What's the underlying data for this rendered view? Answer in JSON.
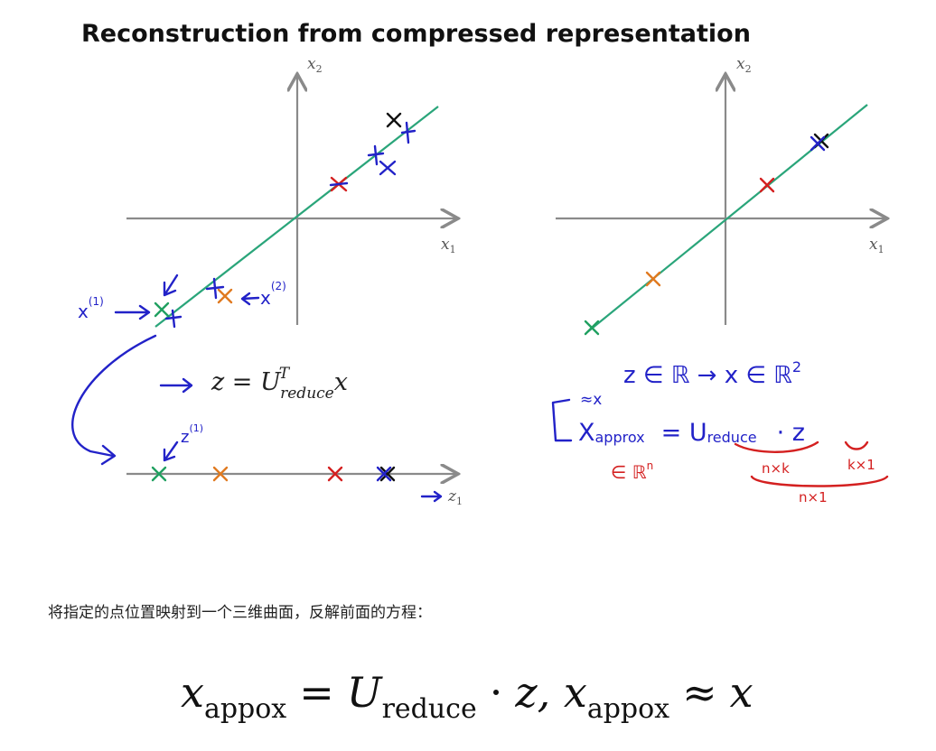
{
  "figure": {
    "title": "Reconstruction from compressed representation",
    "left_plot": {
      "x_axis_label": "x",
      "x_axis_sub": "1",
      "y_axis_label": "x",
      "y_axis_sub": "2"
    },
    "right_plot": {
      "x_axis_label": "x",
      "x_axis_sub": "1",
      "y_axis_label": "x",
      "y_axis_sub": "2"
    },
    "line_plot": {
      "axis_label": "z",
      "axis_sub": "1"
    },
    "colors": {
      "axis": "#8a8a8a",
      "projection_line": "#2aa57a",
      "ink_blue": "#2222c8",
      "ink_red": "#d42020",
      "ink_orange": "#e07a20",
      "ink_green": "#20a060",
      "ink_black": "#111111"
    },
    "annotations": {
      "x1_label": "x",
      "x1_sup": "(1)",
      "x2_label": "x",
      "x2_sup": "(2)",
      "z1_label": "z",
      "z1_sup": "(1)",
      "eq_lhs": "z = U",
      "eq_sup": "T",
      "eq_sub": "reduce",
      "eq_rhs": "x",
      "top_line": "z ∈ ℝ  →  x ∈ ℝ",
      "top_line_sup": "2",
      "approx_symbol": "≈x",
      "approx_eq": "X",
      "approx_eq_sub": "approx",
      "approx_rhs": "= U",
      "approx_rhs_sub": "reduce",
      "approx_dot_z": "· z",
      "in_rn": "∈ ℝ",
      "in_rn_sup": "n",
      "dim_nk": "n×k",
      "dim_k1": "k×1",
      "dim_n1": "n×1"
    }
  },
  "caption": "将指定的点位置映射到一个三维曲面，反解前面的方程：",
  "formula": {
    "lhs_var": "x",
    "lhs_sub": "appox",
    "eq": "=",
    "u_var": "U",
    "u_sub": "reduce",
    "dot": "·",
    "z_var": "z,",
    "rhs_var": "x",
    "rhs_sub": "appox",
    "approx": "≈",
    "x_var": "x"
  }
}
